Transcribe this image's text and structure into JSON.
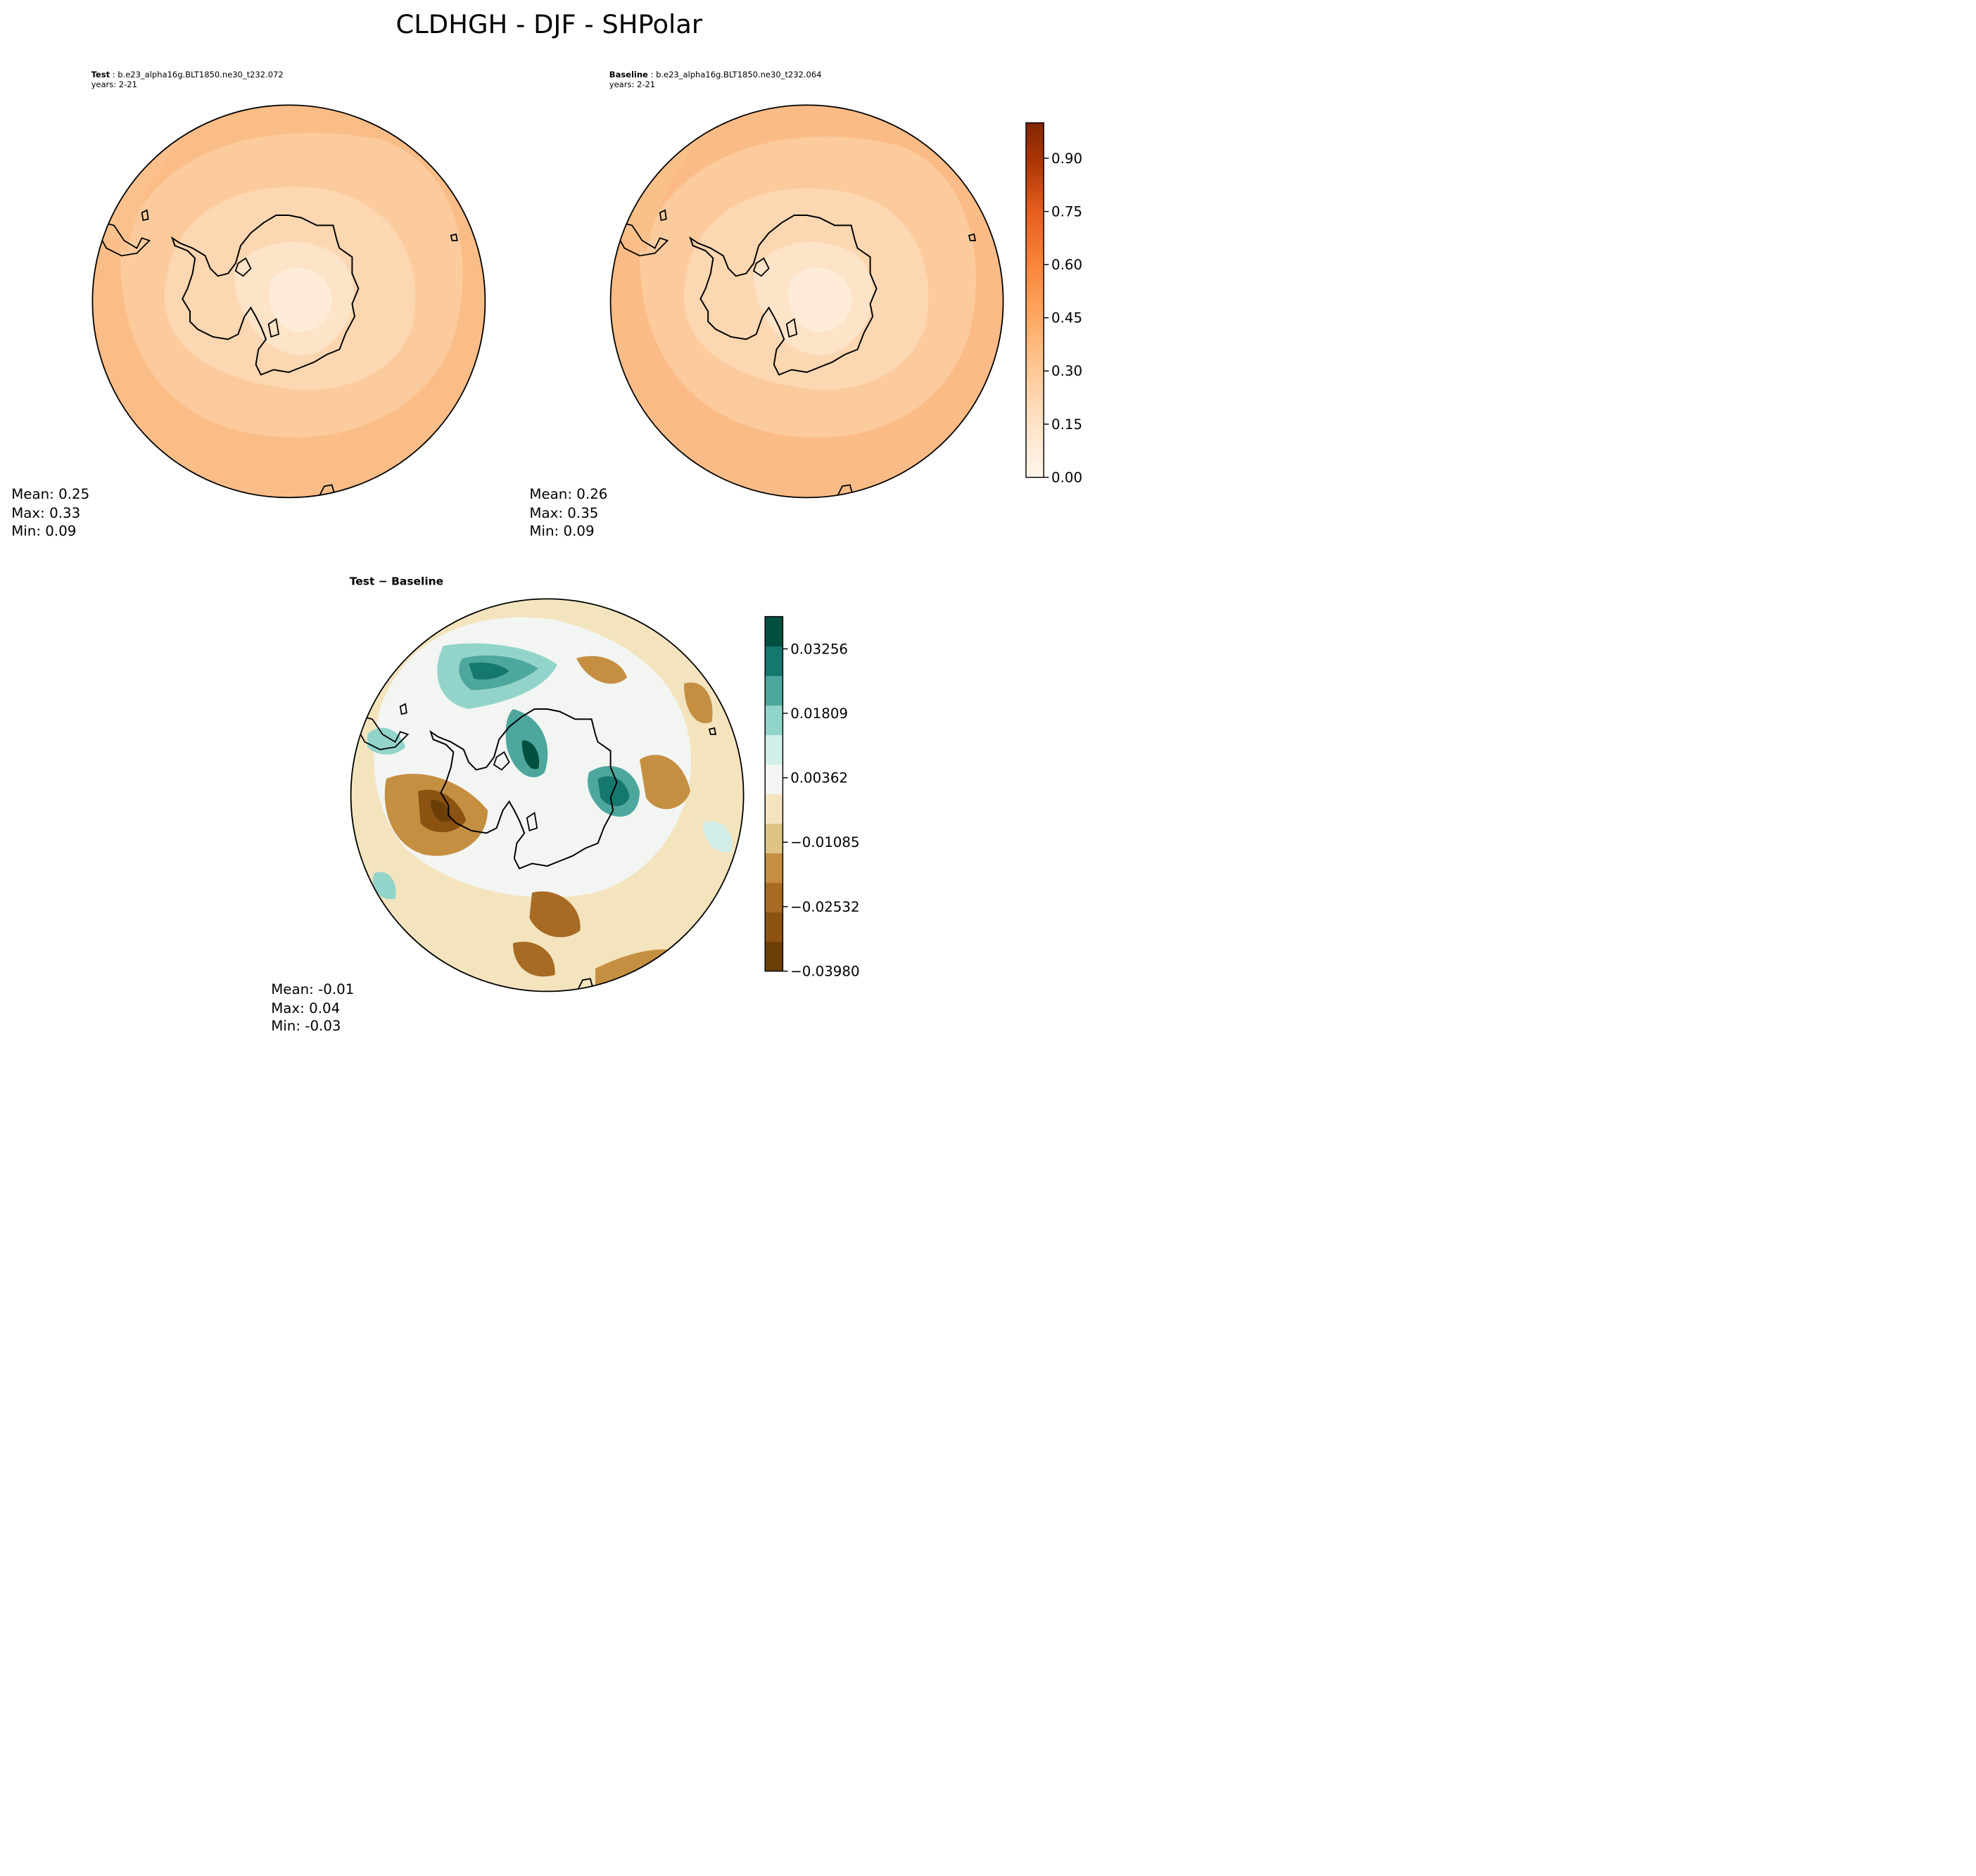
{
  "title": "CLDHGH - DJF - SHPolar",
  "test_panel": {
    "label": "Test",
    "case": "b.e23_alpha16g.BLT1850.ne30_t232.072",
    "years": "years: 2-21",
    "stats": {
      "mean": "Mean:  0.25",
      "max": "Max:  0.33",
      "min": "Min:  0.09"
    }
  },
  "baseline_panel": {
    "label": "Baseline",
    "case": "b.e23_alpha16g.BLT1850.ne30_t232.064",
    "years": "years: 2-21",
    "stats": {
      "mean": "Mean:  0.26",
      "max": "Max:  0.35",
      "min": "Min:  0.09"
    }
  },
  "diff_panel": {
    "title": "Test − Baseline",
    "stats": {
      "mean": "Mean: -0.01",
      "max": "Max:  0.04",
      "min": "Min: -0.03"
    }
  },
  "colors": {
    "field_outer": "#fbbf8a",
    "field_mid": "#fcd0a4",
    "field_inner": "#fde4c8",
    "coast": "#000000",
    "seq_cmap": [
      "#fff5eb",
      "#feecd9",
      "#fee3c8",
      "#fdd6af",
      "#fdc997",
      "#fdba7e",
      "#fda863",
      "#fd974c",
      "#f9853a",
      "#f1702b",
      "#e55d1f",
      "#d84810",
      "#c33c04",
      "#a83403",
      "#8d2d04",
      "#7f2704"
    ],
    "div_cmap": [
      "#6b3e07",
      "#8b5212",
      "#a86b23",
      "#c58f42",
      "#dfc384",
      "#f3e4be",
      "#f3f5f3",
      "#d1eee9",
      "#93d4ca",
      "#4ea79d",
      "#15786f",
      "#01503f"
    ]
  },
  "chart_data": [
    {
      "type": "heatmap",
      "title": "Test",
      "projection": "south polar stereographic",
      "colorbar": {
        "ticks": [
          "0.00",
          "0.15",
          "0.30",
          "0.45",
          "0.60",
          "0.75",
          "0.90"
        ],
        "range": [
          0.0,
          1.0
        ]
      },
      "mean": 0.25,
      "max": 0.33,
      "min": 0.09
    },
    {
      "type": "heatmap",
      "title": "Baseline",
      "projection": "south polar stereographic",
      "colorbar": {
        "ticks": [
          "0.00",
          "0.15",
          "0.30",
          "0.45",
          "0.60",
          "0.75",
          "0.90"
        ],
        "range": [
          0.0,
          1.0
        ]
      },
      "mean": 0.26,
      "max": 0.35,
      "min": 0.09
    },
    {
      "type": "heatmap",
      "title": "Test − Baseline",
      "projection": "south polar stereographic",
      "colorbar": {
        "ticks": [
          "0.03256",
          "0.01809",
          "0.00362",
          "−0.01085",
          "−0.02532",
          "−0.03980"
        ],
        "range": [
          -0.0398,
          0.0398
        ]
      },
      "mean": -0.01,
      "max": 0.04,
      "min": -0.03
    }
  ]
}
